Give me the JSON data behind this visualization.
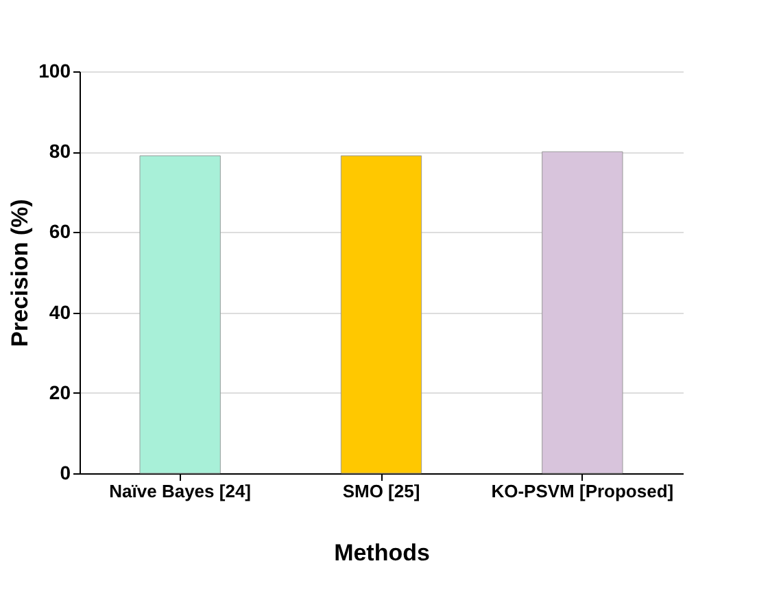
{
  "chart_data": {
    "type": "bar",
    "xlabel": "Methods",
    "ylabel": "Precision (%)",
    "categories": [
      "Naïve Bayes [24]",
      "SMO [25]",
      "KO-PSVM [Proposed]"
    ],
    "values": [
      79,
      79,
      80
    ],
    "colors": [
      "#a8f0d8",
      "#ffc800",
      "#d8c4dc"
    ],
    "ylim": [
      0,
      100
    ],
    "yticks": [
      0,
      20,
      40,
      60,
      80,
      100
    ],
    "grid": "y"
  }
}
